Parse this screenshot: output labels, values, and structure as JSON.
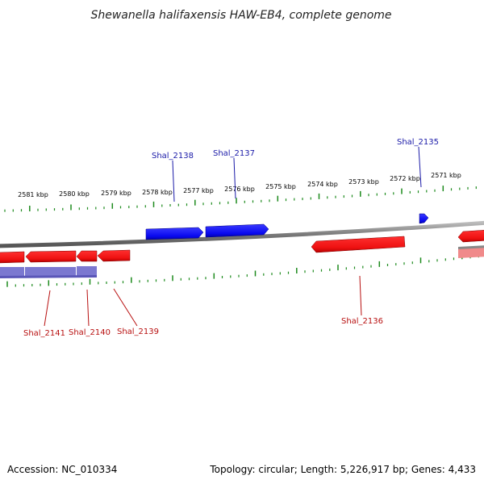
{
  "title": "Shewanella halifaxensis HAW-EB4, complete genome",
  "accession": "Accession: NC_010334",
  "summary": "Topology: circular; Length: 5,226,917 bp; Genes: 4,433",
  "colors": {
    "forward_gene": "#0a0af0",
    "reverse_gene": "#ee1111",
    "backbone": "#8c8c8c",
    "ticks": "#1d8a1d",
    "forward_label": "#1a1aa8",
    "reverse_label": "#b81010",
    "lilac_track": "#7b78d0",
    "pink_track": "#f08a8a"
  },
  "kbp_ticks": [
    "2581 kbp",
    "2580 kbp",
    "2579 kbp",
    "2578 kbp",
    "2577 kbp",
    "2576 kbp",
    "2575 kbp",
    "2574 kbp",
    "2573 kbp",
    "2572 kbp",
    "2571 kbp"
  ],
  "gene_labels": {
    "forward": [
      "Shal_2138",
      "Shal_2137",
      "Shal_2135"
    ],
    "reverse": [
      "Shal_2141",
      "Shal_2140",
      "Shal_2139",
      "Shal_2136"
    ]
  }
}
